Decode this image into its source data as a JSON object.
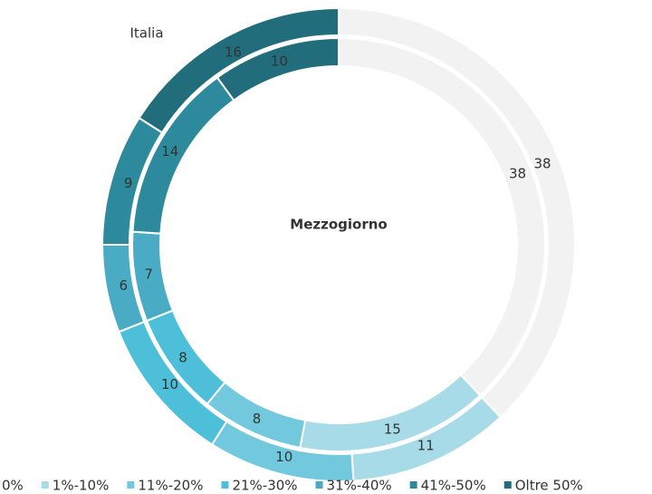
{
  "chart_data": {
    "type": "donut",
    "categories": [
      "0%",
      "1%-10%",
      "11%-20%",
      "21%-30%",
      "31%-40%",
      "41%-50%",
      "Oltre 50%"
    ],
    "colors": [
      "#f2f2f2",
      "#a8dbe8",
      "#72c8dc",
      "#4dbfd9",
      "#4aabc4",
      "#2d8a9c",
      "#216d7b"
    ],
    "series": [
      {
        "name": "Italia",
        "values": [
          38,
          11,
          10,
          10,
          6,
          9,
          16
        ]
      },
      {
        "name": "Mezzogiorno",
        "values": [
          38,
          15,
          8,
          8,
          7,
          14,
          10
        ]
      }
    ]
  }
}
